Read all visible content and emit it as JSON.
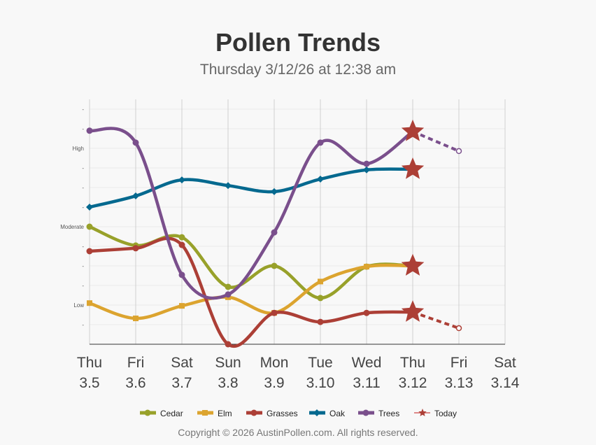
{
  "chart_data": {
    "type": "line",
    "title": "Pollen Trends",
    "subtitle": "Thursday 3/12/26 at 12:38 am",
    "x_labels": [
      [
        "Thu",
        "3.5"
      ],
      [
        "Fri",
        "3.6"
      ],
      [
        "Sat",
        "3.7"
      ],
      [
        "Sun",
        "3.8"
      ],
      [
        "Mon",
        "3.9"
      ],
      [
        "Tue",
        "3.10"
      ],
      [
        "Wed",
        "3.11"
      ],
      [
        "Thu",
        "3.12"
      ],
      [
        "Fri",
        "3.13"
      ],
      [
        "Sat",
        "3.14"
      ]
    ],
    "ylim": [
      0,
      12
    ],
    "y_ticks": [
      {
        "v": 1,
        "label": "-"
      },
      {
        "v": 2,
        "label": "Low"
      },
      {
        "v": 3,
        "label": "-"
      },
      {
        "v": 4,
        "label": "-"
      },
      {
        "v": 5,
        "label": "-"
      },
      {
        "v": 6,
        "label": "Moderate"
      },
      {
        "v": 7,
        "label": "-"
      },
      {
        "v": 8,
        "label": "-"
      },
      {
        "v": 9,
        "label": "-"
      },
      {
        "v": 10,
        "label": "High"
      },
      {
        "v": 11,
        "label": "-"
      },
      {
        "v": 12,
        "label": "-"
      }
    ],
    "today_index": 7,
    "series": [
      {
        "name": "Cedar",
        "color": "#98a12a",
        "marker": "circle",
        "values": [
          6,
          5.04,
          5.46,
          2.93,
          4,
          2.36,
          3.96,
          4
        ],
        "forecast": []
      },
      {
        "name": "Elm",
        "color": "#dca42f",
        "marker": "square",
        "values": [
          2.1,
          1.32,
          1.96,
          2.4,
          1.6,
          3.2,
          3.96,
          4
        ],
        "forecast": []
      },
      {
        "name": "Grasses",
        "color": "#ac3f36",
        "marker": "circle",
        "values": [
          4.75,
          4.9,
          5.07,
          0,
          1.6,
          1.14,
          1.6,
          1.64
        ],
        "forecast": [
          0.82
        ]
      },
      {
        "name": "Oak",
        "color": "#05698f",
        "marker": "diamond",
        "values": [
          7,
          7.57,
          8.39,
          8.1,
          7.79,
          8.43,
          8.9,
          8.93
        ],
        "forecast": []
      },
      {
        "name": "Trees",
        "color": "#7a4f8c",
        "marker": "circle",
        "values": [
          10.9,
          10.29,
          3.54,
          2.54,
          5.71,
          10.29,
          9.21,
          10.86
        ],
        "forecast": [
          9.86
        ]
      }
    ],
    "legend": [
      "Cedar",
      "Elm",
      "Grasses",
      "Oak",
      "Trees",
      "Today"
    ],
    "legend_position": "bottom",
    "today_color": "#ac3f36"
  },
  "footer": {
    "copyright": "Copyright © 2026 AustinPollen.com.  All rights reserved."
  }
}
